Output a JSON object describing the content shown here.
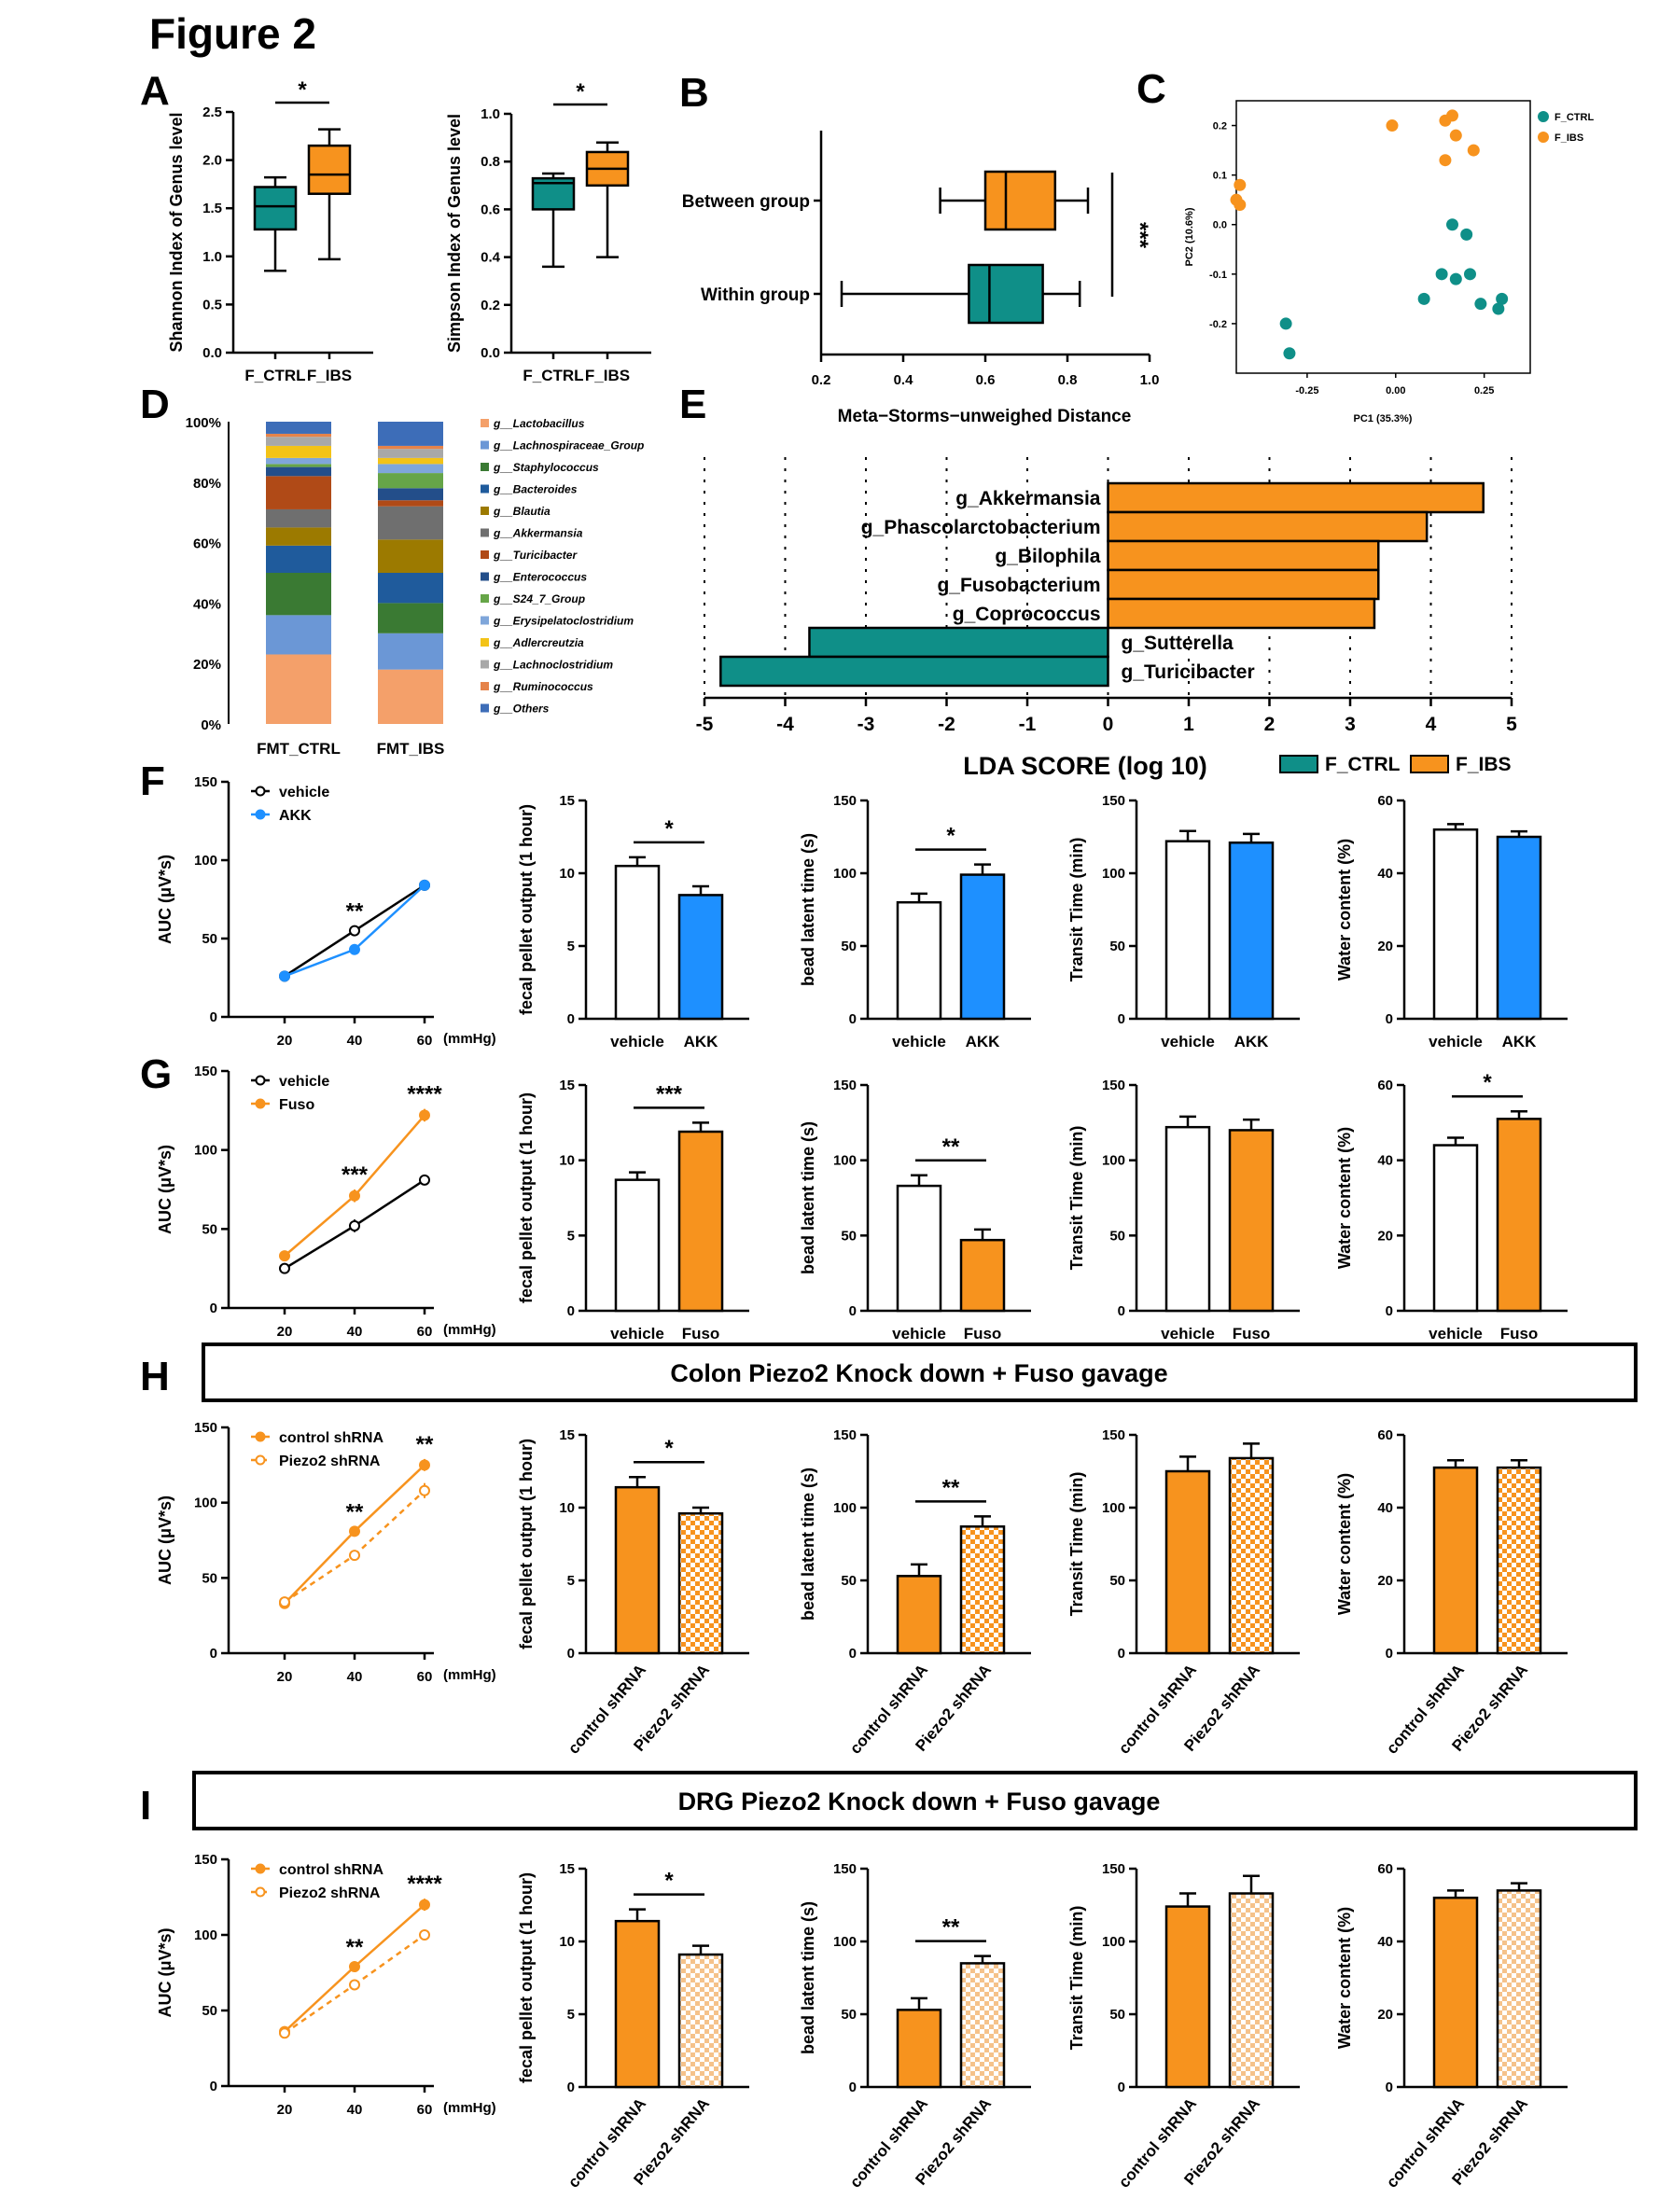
{
  "figure_title": "Figure 2",
  "panel_letters": [
    "A",
    "B",
    "C",
    "D",
    "E",
    "F",
    "G",
    "H",
    "I"
  ],
  "banners": {
    "H": "Colon Piezo2 Knock down + Fuso gavage",
    "I": "DRG Piezo2 Knock down + Fuso gavage"
  },
  "colors": {
    "teal": "#0f8f88",
    "orange": "#f7931e",
    "blue": "#1e90ff",
    "black": "#000000",
    "white": "#ffffff"
  },
  "chart_data": [
    {
      "id": "A1",
      "type": "box",
      "ylabel": "Shannon Index of Genus level",
      "categories": [
        "F_CTRL",
        "F_IBS"
      ],
      "ylim": [
        0,
        2.5
      ],
      "yticks": [
        "0.0",
        "0.5",
        "1.0",
        "1.5",
        "2.0",
        "2.5"
      ],
      "boxes": [
        {
          "min": 0.85,
          "q1": 1.28,
          "median": 1.52,
          "q3": 1.72,
          "max": 1.82
        },
        {
          "min": 0.97,
          "q1": 1.65,
          "median": 1.85,
          "q3": 2.15,
          "max": 2.32
        }
      ],
      "significance": "*"
    },
    {
      "id": "A2",
      "type": "box",
      "ylabel": "Simpson Index of Genus level",
      "categories": [
        "F_CTRL",
        "F_IBS"
      ],
      "ylim": [
        0,
        1.0
      ],
      "yticks": [
        "0.0",
        "0.2",
        "0.4",
        "0.6",
        "0.8",
        "1.0"
      ],
      "boxes": [
        {
          "min": 0.36,
          "q1": 0.6,
          "median": 0.71,
          "q3": 0.73,
          "max": 0.75
        },
        {
          "min": 0.4,
          "q1": 0.7,
          "median": 0.77,
          "q3": 0.84,
          "max": 0.88
        }
      ],
      "significance": "*"
    },
    {
      "id": "B",
      "type": "box_horizontal",
      "xlabel": "Meta−Storms−unweighed Distance",
      "categories": [
        "Between group",
        "Within group"
      ],
      "xlim": [
        0.2,
        1.0
      ],
      "xticks": [
        "0.2",
        "0.4",
        "0.6",
        "0.8",
        "1.0"
      ],
      "boxes": [
        {
          "min": 0.49,
          "q1": 0.6,
          "median": 0.65,
          "q3": 0.77,
          "max": 0.85
        },
        {
          "min": 0.25,
          "q1": 0.56,
          "median": 0.61,
          "q3": 0.74,
          "max": 0.83
        }
      ],
      "significance": "***"
    },
    {
      "id": "C",
      "type": "scatter",
      "xlabel": "PC1 (35.3%)",
      "ylabel": "PC2 (10.6%)",
      "xlim": [
        -0.45,
        0.38
      ],
      "ylim": [
        -0.3,
        0.25
      ],
      "xticks": [
        "-0.25",
        "0.00",
        "0.25"
      ],
      "xtick_values": [
        -0.25,
        0.0,
        0.25
      ],
      "yticks": [
        "-0.2",
        "-0.1",
        "0.0",
        "0.1",
        "0.2"
      ],
      "ytick_values": [
        -0.2,
        -0.1,
        0.0,
        0.1,
        0.2
      ],
      "legend": [
        "F_CTRL",
        "F_IBS"
      ],
      "series": [
        {
          "name": "F_CTRL",
          "points": [
            [
              0.16,
              0.0
            ],
            [
              0.2,
              -0.02
            ],
            [
              0.13,
              -0.1
            ],
            [
              0.17,
              -0.11
            ],
            [
              0.21,
              -0.1
            ],
            [
              0.08,
              -0.15
            ],
            [
              0.24,
              -0.16
            ],
            [
              0.3,
              -0.15
            ],
            [
              0.29,
              -0.17
            ],
            [
              -0.31,
              -0.2
            ],
            [
              -0.3,
              -0.26
            ]
          ]
        },
        {
          "name": "F_IBS",
          "points": [
            [
              -0.01,
              0.2
            ],
            [
              0.14,
              0.21
            ],
            [
              0.16,
              0.22
            ],
            [
              0.17,
              0.18
            ],
            [
              0.22,
              0.15
            ],
            [
              0.14,
              0.13
            ],
            [
              -0.44,
              0.08
            ],
            [
              -0.45,
              0.05
            ],
            [
              -0.44,
              0.04
            ]
          ]
        }
      ]
    },
    {
      "id": "D",
      "type": "stacked_bar",
      "categories": [
        "FMT_CTRL",
        "FMT_IBS"
      ],
      "yticks": [
        "0%",
        "20%",
        "40%",
        "60%",
        "80%",
        "100%"
      ],
      "legend": [
        "g__Lactobacillus",
        "g__Lachnospiraceae_Group",
        "g__Staphylococcus",
        "g__Bacteroides",
        "g__Blautia",
        "g__Akkermansia",
        "g__Turicibacter",
        "g__Enterococcus",
        "g__S24_7_Group",
        "g__Erysipelatoclostridium",
        "g__Adlercreutzia",
        "g__Lachnoclostridium",
        "g__Ruminococcus",
        "g__Others"
      ],
      "legend_colors": [
        "#f4a06a",
        "#6b97d6",
        "#3a7a33",
        "#1f5b9c",
        "#9c7a00",
        "#6f6f6f",
        "#b04a17",
        "#234e8a",
        "#66a548",
        "#7fa6da",
        "#f3c317",
        "#a8a8a8",
        "#e5834a",
        "#3d6db8"
      ],
      "series_values": [
        [
          23,
          18
        ],
        [
          13,
          12
        ],
        [
          14,
          10
        ],
        [
          9,
          10
        ],
        [
          6,
          11
        ],
        [
          6,
          11
        ],
        [
          11,
          2
        ],
        [
          3,
          4
        ],
        [
          1,
          5
        ],
        [
          2,
          3
        ],
        [
          4,
          2
        ],
        [
          3,
          3
        ],
        [
          1,
          1
        ],
        [
          4,
          8
        ]
      ]
    },
    {
      "id": "E",
      "type": "lda_bar",
      "xlabel": "LDA SCORE (log 10)",
      "xlim": [
        -5,
        5
      ],
      "xticks": [
        "-5",
        "-4",
        "-3",
        "-2",
        "-1",
        "0",
        "1",
        "2",
        "3",
        "4",
        "5"
      ],
      "legend": [
        "F_CTRL",
        "F_IBS"
      ],
      "taxa": [
        "g_Akkermansia",
        "g_Phascolarctobacterium",
        "g_Bilophila",
        "g_Fusobacterium",
        "g_Coprococcus",
        "g_Sutterella",
        "g_Turicibacter"
      ],
      "values": [
        4.65,
        3.95,
        3.35,
        3.35,
        3.3,
        -3.7,
        -4.8
      ]
    },
    {
      "id": "F1",
      "type": "line",
      "ylabel": "AUC (μV*s)",
      "x": [
        20,
        40,
        60
      ],
      "xunit": "(mmHg)",
      "ylim": [
        0,
        150
      ],
      "yticks": [
        "0",
        "50",
        "100",
        "150"
      ],
      "series": [
        {
          "name": "vehicle",
          "values": [
            26,
            55,
            84
          ],
          "err": [
            1.5,
            3,
            3
          ]
        },
        {
          "name": "AKK",
          "values": [
            26,
            43,
            84
          ],
          "err": [
            1.5,
            2.5,
            3
          ]
        }
      ],
      "annotations": [
        {
          "x": 40,
          "label": "**"
        }
      ]
    },
    {
      "id": "F2",
      "type": "bar",
      "ylabel": "fecal pellet output  (1 hour)",
      "categories": [
        "vehicle",
        "AKK"
      ],
      "ylim": [
        0,
        15
      ],
      "yticks": [
        "0",
        "5",
        "10",
        "15"
      ],
      "values": [
        10.5,
        8.5
      ],
      "errors": [
        0.6,
        0.6
      ],
      "significance": "*"
    },
    {
      "id": "F3",
      "type": "bar",
      "ylabel": "bead latent time (s)",
      "categories": [
        "vehicle",
        "AKK"
      ],
      "ylim": [
        0,
        150
      ],
      "yticks": [
        "0",
        "50",
        "100",
        "150"
      ],
      "values": [
        80,
        99
      ],
      "errors": [
        6,
        7
      ],
      "significance": "*"
    },
    {
      "id": "F4",
      "type": "bar",
      "ylabel": "Transit Time (min)",
      "categories": [
        "vehicle",
        "AKK"
      ],
      "ylim": [
        0,
        150
      ],
      "yticks": [
        "0",
        "50",
        "100",
        "150"
      ],
      "values": [
        122,
        121
      ],
      "errors": [
        7,
        6
      ],
      "significance": ""
    },
    {
      "id": "F5",
      "type": "bar",
      "ylabel": "Water content (%)",
      "categories": [
        "vehicle",
        "AKK"
      ],
      "ylim": [
        0,
        60
      ],
      "yticks": [
        "0",
        "20",
        "40",
        "60"
      ],
      "values": [
        52,
        50
      ],
      "errors": [
        1.5,
        1.5
      ],
      "significance": ""
    },
    {
      "id": "G1",
      "type": "line",
      "ylabel": "AUC (μV*s)",
      "x": [
        20,
        40,
        60
      ],
      "xunit": "(mmHg)",
      "ylim": [
        0,
        150
      ],
      "yticks": [
        "0",
        "50",
        "100",
        "150"
      ],
      "series": [
        {
          "name": "vehicle",
          "values": [
            25,
            52,
            81
          ],
          "err": [
            2,
            4,
            3
          ]
        },
        {
          "name": "Fuso",
          "values": [
            33,
            71,
            122
          ],
          "err": [
            2,
            4,
            4
          ]
        }
      ],
      "annotations": [
        {
          "x": 40,
          "label": "***"
        },
        {
          "x": 60,
          "label": "****"
        }
      ]
    },
    {
      "id": "G2",
      "type": "bar",
      "ylabel": "fecal pellet output  (1 hour)",
      "categories": [
        "vehicle",
        "Fuso"
      ],
      "ylim": [
        0,
        15
      ],
      "yticks": [
        "0",
        "5",
        "10",
        "15"
      ],
      "values": [
        8.7,
        11.9
      ],
      "errors": [
        0.5,
        0.6
      ],
      "significance": "***"
    },
    {
      "id": "G3",
      "type": "bar",
      "ylabel": "bead latent time (s)",
      "categories": [
        "vehicle",
        "Fuso"
      ],
      "ylim": [
        0,
        150
      ],
      "yticks": [
        "0",
        "50",
        "100",
        "150"
      ],
      "values": [
        83,
        47
      ],
      "errors": [
        7,
        7
      ],
      "significance": "**"
    },
    {
      "id": "G4",
      "type": "bar",
      "ylabel": "Transit Time (min)",
      "categories": [
        "vehicle",
        "Fuso"
      ],
      "ylim": [
        0,
        150
      ],
      "yticks": [
        "0",
        "50",
        "100",
        "150"
      ],
      "values": [
        122,
        120
      ],
      "errors": [
        7,
        7
      ],
      "significance": ""
    },
    {
      "id": "G5",
      "type": "bar",
      "ylabel": "Water content (%)",
      "categories": [
        "vehicle",
        "Fuso"
      ],
      "ylim": [
        0,
        60
      ],
      "yticks": [
        "0",
        "20",
        "40",
        "60"
      ],
      "values": [
        44,
        51
      ],
      "errors": [
        2,
        2
      ],
      "significance": "*"
    },
    {
      "id": "H1",
      "type": "line",
      "ylabel": "AUC (μV*s)",
      "x": [
        20,
        40,
        60
      ],
      "xunit": "(mmHg)",
      "ylim": [
        0,
        150
      ],
      "yticks": [
        "0",
        "50",
        "100",
        "150"
      ],
      "series": [
        {
          "name": "control shRNA",
          "values": [
            33,
            81,
            125
          ],
          "err": [
            2,
            3,
            4
          ]
        },
        {
          "name": "Piezo2 shRNA",
          "values": [
            34,
            65,
            108
          ],
          "err": [
            2,
            3,
            5
          ]
        }
      ],
      "annotations": [
        {
          "x": 40,
          "label": "**"
        },
        {
          "x": 60,
          "label": "**"
        }
      ]
    },
    {
      "id": "H2",
      "type": "bar",
      "ylabel": "fecal pellet output  (1 hour)",
      "categories": [
        "control shRNA",
        "Piezo2 shRNA"
      ],
      "ylim": [
        0,
        15
      ],
      "yticks": [
        "0",
        "5",
        "10",
        "15"
      ],
      "values": [
        11.4,
        9.6
      ],
      "errors": [
        0.7,
        0.4
      ],
      "significance": "*"
    },
    {
      "id": "H3",
      "type": "bar",
      "ylabel": "bead latent time (s)",
      "categories": [
        "control shRNA",
        "Piezo2 shRNA"
      ],
      "ylim": [
        0,
        150
      ],
      "yticks": [
        "0",
        "50",
        "100",
        "150"
      ],
      "values": [
        53,
        87
      ],
      "errors": [
        8,
        7
      ],
      "significance": "**"
    },
    {
      "id": "H4",
      "type": "bar",
      "ylabel": "Transit Time (min)",
      "categories": [
        "control shRNA",
        "Piezo2 shRNA"
      ],
      "ylim": [
        0,
        150
      ],
      "yticks": [
        "0",
        "50",
        "100",
        "150"
      ],
      "values": [
        125,
        134
      ],
      "errors": [
        10,
        10
      ],
      "significance": ""
    },
    {
      "id": "H5",
      "type": "bar",
      "ylabel": "Water content (%)",
      "categories": [
        "control shRNA",
        "Piezo2 shRNA"
      ],
      "ylim": [
        0,
        60
      ],
      "yticks": [
        "0",
        "20",
        "40",
        "60"
      ],
      "values": [
        51,
        51
      ],
      "errors": [
        2,
        2
      ],
      "significance": ""
    },
    {
      "id": "I1",
      "type": "line",
      "ylabel": "AUC (μV*s)",
      "x": [
        20,
        40,
        60
      ],
      "xunit": "(mmHg)",
      "ylim": [
        0,
        150
      ],
      "yticks": [
        "0",
        "50",
        "100",
        "150"
      ],
      "series": [
        {
          "name": "control shRNA",
          "values": [
            36,
            79,
            120
          ],
          "err": [
            2,
            3,
            4
          ]
        },
        {
          "name": "Piezo2 shRNA",
          "values": [
            35,
            67,
            100
          ],
          "err": [
            2,
            2,
            3
          ]
        }
      ],
      "annotations": [
        {
          "x": 40,
          "label": "**"
        },
        {
          "x": 60,
          "label": "****"
        }
      ]
    },
    {
      "id": "I2",
      "type": "bar",
      "ylabel": "fecal pellet output  (1 hour)",
      "categories": [
        "control shRNA",
        "Piezo2 shRNA"
      ],
      "ylim": [
        0,
        15
      ],
      "yticks": [
        "0",
        "5",
        "10",
        "15"
      ],
      "values": [
        11.4,
        9.1
      ],
      "errors": [
        0.8,
        0.6
      ],
      "significance": "*"
    },
    {
      "id": "I3",
      "type": "bar",
      "ylabel": "bead latent time (s)",
      "categories": [
        "control shRNA",
        "Piezo2 shRNA"
      ],
      "ylim": [
        0,
        150
      ],
      "yticks": [
        "0",
        "50",
        "100",
        "150"
      ],
      "values": [
        53,
        85
      ],
      "errors": [
        8,
        5
      ],
      "significance": "**"
    },
    {
      "id": "I4",
      "type": "bar",
      "ylabel": "Transit Time (min)",
      "categories": [
        "control shRNA",
        "Piezo2 shRNA"
      ],
      "ylim": [
        0,
        150
      ],
      "yticks": [
        "0",
        "50",
        "100",
        "150"
      ],
      "values": [
        124,
        133
      ],
      "errors": [
        9,
        12
      ],
      "significance": ""
    },
    {
      "id": "I5",
      "type": "bar",
      "ylabel": "Water content (%)",
      "categories": [
        "control shRNA",
        "Piezo2 shRNA"
      ],
      "ylim": [
        0,
        60
      ],
      "yticks": [
        "0",
        "20",
        "40",
        "60"
      ],
      "values": [
        52,
        54
      ],
      "errors": [
        2,
        2
      ],
      "significance": ""
    }
  ]
}
